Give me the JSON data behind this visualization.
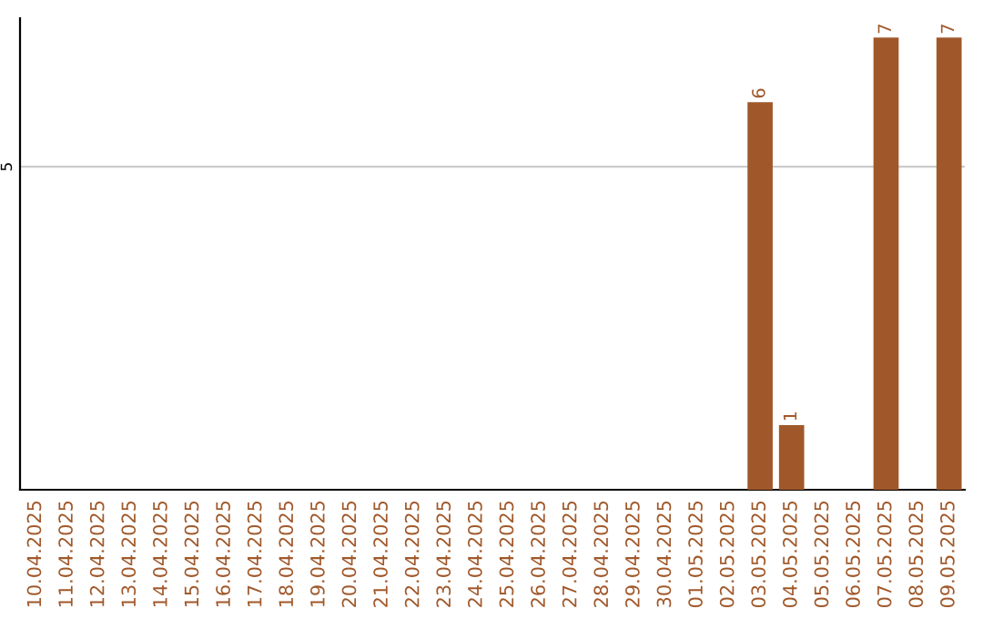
{
  "chart_data": {
    "type": "bar",
    "categories": [
      "10.04.2025",
      "11.04.2025",
      "12.04.2025",
      "13.04.2025",
      "14.04.2025",
      "15.04.2025",
      "16.04.2025",
      "17.04.2025",
      "18.04.2025",
      "19.04.2025",
      "20.04.2025",
      "21.04.2025",
      "22.04.2025",
      "23.04.2025",
      "24.04.2025",
      "25.04.2025",
      "26.04.2025",
      "27.04.2025",
      "28.04.2025",
      "29.04.2025",
      "30.04.2025",
      "01.05.2025",
      "02.05.2025",
      "03.05.2025",
      "04.05.2025",
      "05.05.2025",
      "06.05.2025",
      "07.05.2025",
      "08.05.2025",
      "09.05.2025"
    ],
    "values": [
      null,
      null,
      null,
      null,
      null,
      null,
      null,
      null,
      null,
      null,
      null,
      null,
      null,
      null,
      null,
      null,
      null,
      null,
      null,
      null,
      null,
      null,
      null,
      6,
      1,
      null,
      null,
      7,
      null,
      7
    ],
    "color": "#a0582a",
    "ylim": [
      0,
      7.3
    ],
    "yticks": [
      5
    ],
    "grid": "y",
    "data_labels": true
  }
}
